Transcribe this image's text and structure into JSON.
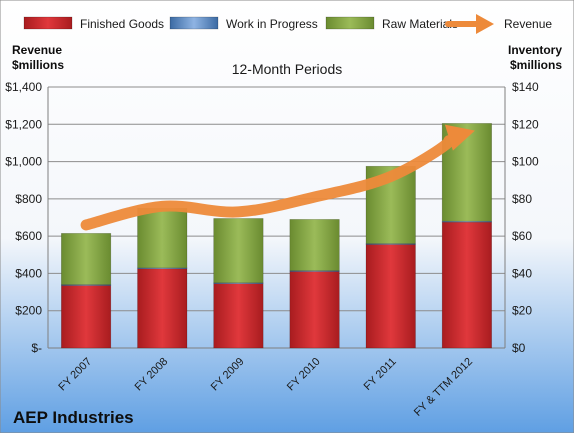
{
  "company": "AEP Industries",
  "colors": {
    "finished_goods": "#c9262a",
    "work_in_progress": "#4f81bd",
    "raw_materials": "#7fa03e",
    "revenue": "#ed8a3a",
    "bg_top": "#ffffff",
    "bg_bottom": "#5f9fe3"
  },
  "chart_data": {
    "type": "bar",
    "stacked": true,
    "title": "12-Month Periods",
    "left_axis_label": [
      "Revenue",
      "$millions"
    ],
    "right_axis_label": [
      "Inventory",
      "$millions"
    ],
    "categories": [
      "FY 2007",
      "FY 2008",
      "FY 2009",
      "FY 2010",
      "FY 2011",
      "FY & TTM 2012"
    ],
    "series": [
      {
        "name": "Finished Goods",
        "axis": "right",
        "kind": "bar",
        "values": [
          33.5,
          42.5,
          34.5,
          41,
          55.5,
          67.5
        ]
      },
      {
        "name": "Work in Progress",
        "axis": "right",
        "kind": "bar",
        "values": [
          0.5,
          0.5,
          0.5,
          0.5,
          0.5,
          0.5
        ]
      },
      {
        "name": "Raw Materials",
        "axis": "right",
        "kind": "bar",
        "values": [
          27.5,
          32,
          34.5,
          27.5,
          41.5,
          52.5
        ]
      },
      {
        "name": "Revenue",
        "axis": "left",
        "kind": "line",
        "values": [
          660,
          760,
          730,
          810,
          920,
          1150
        ]
      }
    ],
    "left_axis": {
      "min": 0,
      "max": 1400,
      "step": 200,
      "tick_labels": [
        "$-",
        "$200",
        "$400",
        "$600",
        "$800",
        "$1,000",
        "$1,200",
        "$1,400"
      ]
    },
    "right_axis": {
      "min": 0,
      "max": 140,
      "step": 20,
      "tick_labels": [
        "$0",
        "$20",
        "$40",
        "$60",
        "$80",
        "$100",
        "$120",
        "$140"
      ]
    },
    "grid": true,
    "legend_position": "top"
  }
}
